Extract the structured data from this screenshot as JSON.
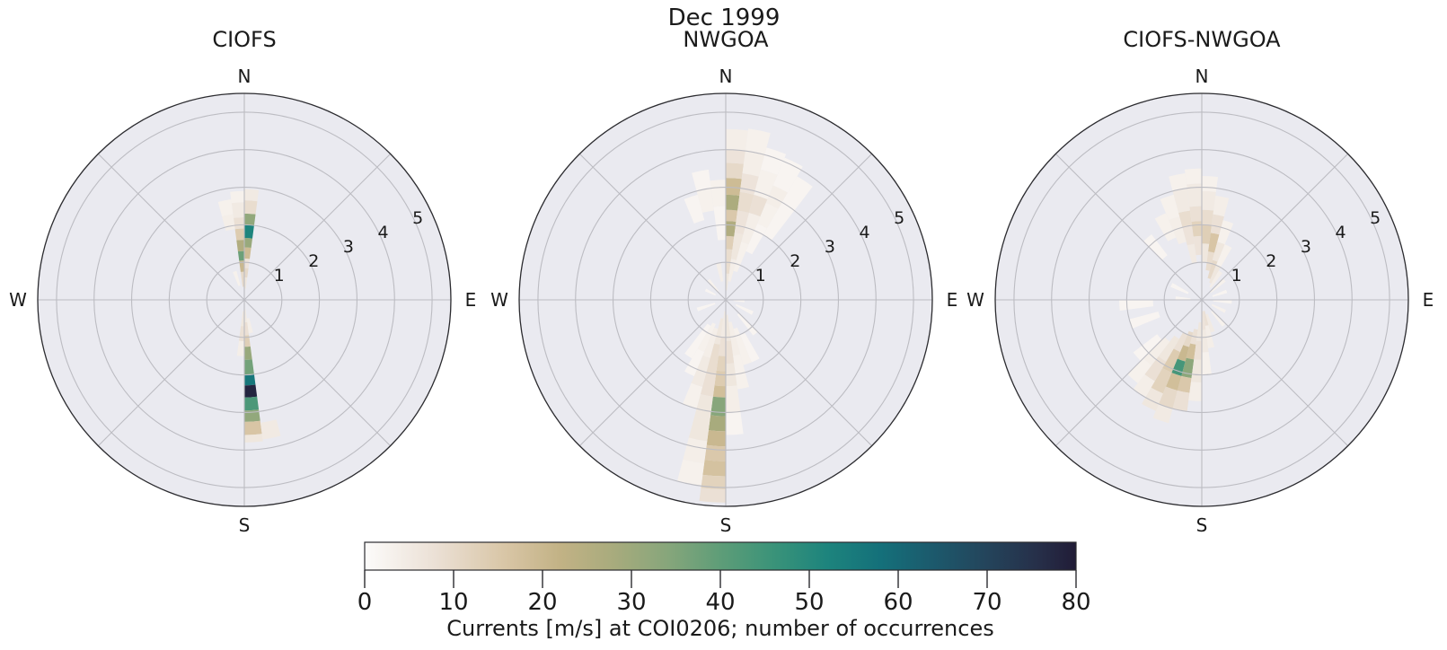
{
  "suptitle": "Dec 1999",
  "figure": {
    "background": "#ffffff",
    "panel_background": "#eaeaf0",
    "grid_color": "#bcbcc2",
    "spine_color": "#2b2b2f",
    "text_color": "#1a1a1a"
  },
  "colorbar": {
    "label": "Currents [m/s] at COI0206; number of occurrences",
    "ticks": [
      0,
      10,
      20,
      30,
      40,
      50,
      60,
      70,
      80
    ],
    "min": 0,
    "max": 80,
    "stops": [
      [
        0,
        "#fcfbfa"
      ],
      [
        8,
        "#ebe0d5"
      ],
      [
        16,
        "#d8c5a5"
      ],
      [
        22,
        "#c2b285"
      ],
      [
        28,
        "#a8ab7d"
      ],
      [
        34,
        "#87a67b"
      ],
      [
        40,
        "#5e9d78"
      ],
      [
        46,
        "#3a9379"
      ],
      [
        52,
        "#1d847d"
      ],
      [
        58,
        "#14707a"
      ],
      [
        64,
        "#1c596c"
      ],
      [
        70,
        "#24445b"
      ],
      [
        76,
        "#262e48"
      ],
      [
        80,
        "#211c37"
      ]
    ]
  },
  "chart_data": [
    {
      "type": "heatmap",
      "subtype": "polar-current-rose",
      "title": "CIOFS",
      "compass_labels": {
        "n": "N",
        "e": "E",
        "s": "S",
        "w": "W"
      },
      "r_ticks": [
        1,
        2,
        3,
        4,
        5
      ],
      "r_max": 5.5,
      "sector_width_deg": 7.5,
      "cell_format": "[dir_deg_from_N_clockwise, r0_speed, r1_speed, occurrences]",
      "cells": [
        [
          352.5,
          0.35,
          0.75,
          10
        ],
        [
          352.5,
          0.75,
          1.05,
          20
        ],
        [
          352.5,
          1.05,
          1.3,
          38
        ],
        [
          352.5,
          1.3,
          1.6,
          26
        ],
        [
          352.5,
          1.6,
          1.9,
          14
        ],
        [
          352.5,
          1.9,
          2.2,
          8
        ],
        [
          352.5,
          2.2,
          2.6,
          5
        ],
        [
          352.5,
          2.6,
          2.9,
          3
        ],
        [
          0,
          0.3,
          0.6,
          6
        ],
        [
          0,
          0.6,
          0.85,
          10
        ],
        [
          0,
          0.85,
          1.1,
          7
        ],
        [
          0,
          1.1,
          1.4,
          19
        ],
        [
          0,
          1.4,
          1.65,
          31
        ],
        [
          0,
          1.65,
          2.0,
          52
        ],
        [
          0,
          2.0,
          2.3,
          32
        ],
        [
          0,
          2.3,
          2.65,
          9
        ],
        [
          0,
          2.65,
          2.95,
          5
        ],
        [
          345,
          1.9,
          2.3,
          4
        ],
        [
          345,
          2.3,
          2.7,
          3
        ],
        [
          337.5,
          0.4,
          0.8,
          3
        ],
        [
          172.5,
          0.25,
          0.6,
          5
        ],
        [
          172.5,
          0.6,
          0.95,
          8
        ],
        [
          172.5,
          0.95,
          1.25,
          13
        ],
        [
          172.5,
          1.25,
          1.6,
          31
        ],
        [
          172.5,
          1.6,
          2.0,
          37
        ],
        [
          172.5,
          2.0,
          2.28,
          56
        ],
        [
          172.5,
          2.28,
          2.6,
          78
        ],
        [
          172.5,
          2.6,
          2.95,
          43
        ],
        [
          172.5,
          2.95,
          3.25,
          32
        ],
        [
          172.5,
          3.25,
          3.6,
          16
        ],
        [
          172.5,
          3.6,
          3.8,
          6
        ],
        [
          165,
          0.5,
          0.9,
          4
        ],
        [
          165,
          3.3,
          3.75,
          5
        ],
        [
          180,
          0.3,
          0.7,
          6
        ],
        [
          180,
          0.7,
          1.1,
          8
        ],
        [
          180,
          1.1,
          1.5,
          4
        ]
      ]
    },
    {
      "type": "heatmap",
      "subtype": "polar-current-rose",
      "title": "NWGOA",
      "compass_labels": {
        "n": "N",
        "e": "E",
        "s": "S",
        "w": "W"
      },
      "r_ticks": [
        1,
        2,
        3,
        4,
        5
      ],
      "r_max": 5.5,
      "sector_width_deg": 7.5,
      "cell_format": "[dir_deg_from_N_clockwise, r0_speed, r1_speed, occurrences]",
      "cells": [
        [
          0,
          0.25,
          0.7,
          6
        ],
        [
          0,
          0.7,
          1.35,
          9
        ],
        [
          0,
          1.35,
          1.7,
          13
        ],
        [
          0,
          1.7,
          2.1,
          26
        ],
        [
          0,
          2.1,
          2.4,
          15
        ],
        [
          0,
          2.4,
          2.8,
          27
        ],
        [
          0,
          2.8,
          3.25,
          19
        ],
        [
          0,
          3.25,
          3.65,
          10
        ],
        [
          0,
          3.65,
          4.0,
          7
        ],
        [
          0,
          4.0,
          4.55,
          4
        ],
        [
          7.5,
          0.5,
          1.1,
          4
        ],
        [
          7.5,
          1.1,
          1.8,
          6
        ],
        [
          7.5,
          1.8,
          2.4,
          7
        ],
        [
          7.5,
          2.4,
          2.9,
          9
        ],
        [
          7.5,
          2.9,
          3.4,
          7
        ],
        [
          7.5,
          3.4,
          4.0,
          4
        ],
        [
          7.5,
          4.0,
          4.6,
          3
        ],
        [
          15,
          0.8,
          1.6,
          3
        ],
        [
          15,
          1.6,
          2.4,
          4
        ],
        [
          15,
          2.4,
          2.9,
          8
        ],
        [
          15,
          2.9,
          3.6,
          3
        ],
        [
          15,
          3.6,
          4.2,
          2
        ],
        [
          22.5,
          1.4,
          2.2,
          2
        ],
        [
          22.5,
          2.2,
          2.8,
          3
        ],
        [
          22.5,
          2.8,
          3.3,
          4
        ],
        [
          22.5,
          3.3,
          4.1,
          2
        ],
        [
          30,
          2.0,
          3.0,
          2
        ],
        [
          30,
          3.0,
          3.8,
          2
        ],
        [
          352.5,
          1.6,
          2.5,
          2
        ],
        [
          352.5,
          2.5,
          3.2,
          3
        ],
        [
          345,
          0.5,
          1.0,
          4
        ],
        [
          345,
          2.4,
          3.0,
          3
        ],
        [
          345,
          3.0,
          3.5,
          2
        ],
        [
          337.5,
          2.2,
          2.9,
          2
        ],
        [
          315,
          0.3,
          0.7,
          3
        ],
        [
          292.5,
          0.3,
          0.6,
          2
        ],
        [
          180,
          0.3,
          1.0,
          5
        ],
        [
          180,
          1.0,
          1.5,
          8
        ],
        [
          180,
          1.5,
          1.9,
          12
        ],
        [
          180,
          1.9,
          2.3,
          14
        ],
        [
          180,
          2.3,
          2.6,
          18
        ],
        [
          180,
          2.6,
          3.1,
          34
        ],
        [
          180,
          3.1,
          3.5,
          28
        ],
        [
          180,
          3.5,
          3.9,
          20
        ],
        [
          180,
          3.9,
          4.3,
          15
        ],
        [
          180,
          4.3,
          4.7,
          17
        ],
        [
          180,
          4.7,
          5.05,
          12
        ],
        [
          180,
          5.05,
          5.4,
          8
        ],
        [
          187.5,
          0.5,
          1.2,
          6
        ],
        [
          187.5,
          1.2,
          2.0,
          9
        ],
        [
          187.5,
          2.0,
          2.6,
          8
        ],
        [
          187.5,
          2.6,
          3.2,
          6
        ],
        [
          187.5,
          3.2,
          3.8,
          6
        ],
        [
          187.5,
          3.8,
          4.4,
          4
        ],
        [
          187.5,
          4.4,
          5.0,
          3
        ],
        [
          195,
          0.8,
          1.6,
          4
        ],
        [
          195,
          1.6,
          2.4,
          5
        ],
        [
          195,
          2.4,
          3.0,
          3
        ],
        [
          202.5,
          0.7,
          1.5,
          3
        ],
        [
          202.5,
          1.5,
          2.2,
          2
        ],
        [
          210,
          0.8,
          1.8,
          2
        ],
        [
          172.5,
          0.4,
          1.1,
          6
        ],
        [
          172.5,
          1.1,
          1.7,
          8
        ],
        [
          172.5,
          1.7,
          2.3,
          6
        ],
        [
          172.5,
          2.3,
          3.0,
          4
        ],
        [
          172.5,
          3.0,
          3.6,
          2
        ],
        [
          165,
          0.6,
          1.5,
          4
        ],
        [
          165,
          1.5,
          2.4,
          3
        ],
        [
          157.5,
          0.8,
          1.8,
          3
        ],
        [
          150,
          1.0,
          1.8,
          2
        ],
        [
          135,
          0.5,
          1.2,
          2
        ],
        [
          112.5,
          0.3,
          0.8,
          2
        ],
        [
          90,
          0.2,
          0.5,
          2
        ],
        [
          247.5,
          0.3,
          0.8,
          2
        ]
      ]
    },
    {
      "type": "heatmap",
      "subtype": "polar-current-rose",
      "title": "CIOFS-NWGOA",
      "compass_labels": {
        "n": "N",
        "e": "E",
        "s": "S",
        "w": "W"
      },
      "r_ticks": [
        1,
        2,
        3,
        4,
        5
      ],
      "r_max": 5.5,
      "sector_width_deg": 7.5,
      "cell_format": "[dir_deg_from_N_clockwise, r0_speed, r1_speed, occurrences]",
      "cells": [
        [
          345,
          1.0,
          1.5,
          5
        ],
        [
          345,
          1.5,
          2.0,
          7
        ],
        [
          345,
          2.0,
          2.4,
          9
        ],
        [
          345,
          2.4,
          3.0,
          5
        ],
        [
          345,
          3.0,
          3.4,
          3
        ],
        [
          352.5,
          1.2,
          1.7,
          7
        ],
        [
          352.5,
          1.7,
          2.1,
          12
        ],
        [
          352.5,
          2.1,
          2.5,
          8
        ],
        [
          352.5,
          2.5,
          3.1,
          5
        ],
        [
          352.5,
          3.1,
          3.5,
          3
        ],
        [
          0,
          1.0,
          1.5,
          6
        ],
        [
          0,
          1.5,
          2.0,
          13
        ],
        [
          0,
          2.0,
          2.4,
          9
        ],
        [
          0,
          2.4,
          2.9,
          5
        ],
        [
          0,
          2.9,
          3.3,
          3
        ],
        [
          7.5,
          0.8,
          1.3,
          9
        ],
        [
          7.5,
          1.3,
          1.8,
          16
        ],
        [
          7.5,
          1.8,
          2.3,
          8
        ],
        [
          7.5,
          2.3,
          2.8,
          4
        ],
        [
          15,
          0.6,
          1.1,
          10
        ],
        [
          15,
          1.1,
          1.6,
          6
        ],
        [
          15,
          1.6,
          2.2,
          3
        ],
        [
          22.5,
          0.5,
          1.0,
          6
        ],
        [
          22.5,
          1.0,
          1.6,
          3
        ],
        [
          30,
          0.4,
          0.9,
          4
        ],
        [
          337.5,
          1.6,
          2.3,
          4
        ],
        [
          337.5,
          2.3,
          2.9,
          3
        ],
        [
          330,
          1.8,
          2.5,
          3
        ],
        [
          315,
          1.5,
          2.2,
          2
        ],
        [
          187.5,
          0.8,
          1.2,
          8
        ],
        [
          187.5,
          1.2,
          1.6,
          18
        ],
        [
          187.5,
          1.6,
          2.1,
          33
        ],
        [
          187.5,
          2.1,
          2.5,
          15
        ],
        [
          187.5,
          2.5,
          3.0,
          8
        ],
        [
          195,
          0.9,
          1.3,
          10
        ],
        [
          195,
          1.3,
          1.7,
          20
        ],
        [
          195,
          1.7,
          2.1,
          44
        ],
        [
          195,
          2.1,
          2.5,
          18
        ],
        [
          195,
          2.5,
          3.0,
          10
        ],
        [
          195,
          3.0,
          3.4,
          5
        ],
        [
          202.5,
          1.0,
          1.5,
          8
        ],
        [
          202.5,
          1.5,
          2.1,
          14
        ],
        [
          202.5,
          2.1,
          2.7,
          12
        ],
        [
          202.5,
          2.7,
          3.2,
          6
        ],
        [
          210,
          1.2,
          1.9,
          6
        ],
        [
          210,
          1.9,
          2.5,
          8
        ],
        [
          210,
          2.5,
          3.0,
          4
        ],
        [
          217.5,
          1.4,
          2.2,
          4
        ],
        [
          217.5,
          2.2,
          2.8,
          3
        ],
        [
          225,
          1.5,
          2.3,
          2
        ],
        [
          180,
          0.6,
          1.1,
          6
        ],
        [
          180,
          1.1,
          1.6,
          8
        ],
        [
          180,
          1.6,
          2.2,
          6
        ],
        [
          180,
          2.2,
          2.7,
          4
        ],
        [
          172.5,
          0.3,
          0.8,
          7
        ],
        [
          172.5,
          0.8,
          1.4,
          5
        ],
        [
          172.5,
          1.4,
          2.0,
          3
        ],
        [
          165,
          0.3,
          0.7,
          8
        ],
        [
          165,
          0.7,
          1.3,
          4
        ],
        [
          157.5,
          0.4,
          0.9,
          5
        ],
        [
          247.5,
          1.2,
          2.0,
          2
        ],
        [
          262.5,
          1.3,
          2.2,
          2
        ],
        [
          45,
          0.3,
          0.8,
          3
        ],
        [
          67.5,
          0.3,
          0.7,
          2
        ],
        [
          90,
          0.3,
          0.8,
          2
        ],
        [
          112.5,
          0.3,
          0.7,
          3
        ],
        [
          135,
          0.4,
          0.9,
          3
        ],
        [
          292.5,
          0.4,
          0.9,
          2
        ],
        [
          270,
          0.3,
          0.7,
          2
        ]
      ]
    }
  ]
}
